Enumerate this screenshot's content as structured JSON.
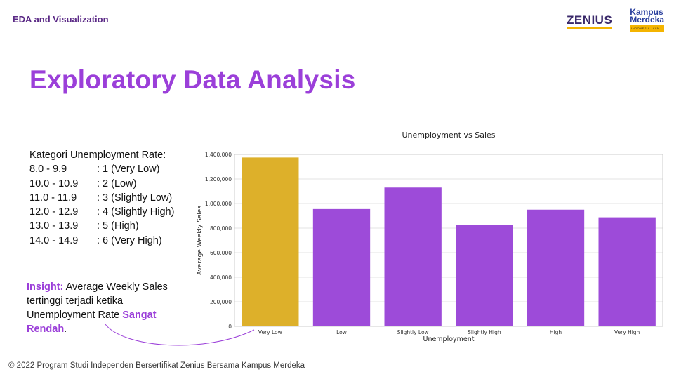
{
  "header": {
    "section_title": "EDA and Visualization",
    "logo_zenius": "ZENIUS",
    "logo_km_line1": "Kampus",
    "logo_km_line2": "Merdeka",
    "logo_km_tagline": "INDONESIA JAYA"
  },
  "page_title": "Exploratory Data Analysis",
  "kategori": {
    "heading": "Kategori Unemployment Rate:",
    "rows": [
      {
        "range": "8.0 - 9.9",
        "category": ": 1 (Very Low)"
      },
      {
        "range": "10.0 - 10.9",
        "category": ": 2 (Low)"
      },
      {
        "range": "11.0 - 11.9",
        "category": ": 3 (Slightly Low)"
      },
      {
        "range": "12.0 - 12.9",
        "category": ": 4 (Slightly High)"
      },
      {
        "range": "13.0 - 13.9",
        "category": ": 5 (High)"
      },
      {
        "range": "14.0 - 14.9",
        "category": ": 6 (Very High)"
      }
    ]
  },
  "insight": {
    "label": "Insight:",
    "text_part1": " Average Weekly Sales tertinggi terjadi ketika Unemployment Rate ",
    "emphasis": "Sangat Rendah",
    "text_end": "."
  },
  "chart_data": {
    "type": "bar",
    "title": "Unemployment vs Sales",
    "xlabel": "Unemployment",
    "ylabel": "Average Weekly Sales",
    "categories": [
      "Very Low",
      "Low",
      "Slightly Low",
      "Slightly High",
      "High",
      "Very High"
    ],
    "values": [
      1375000,
      955000,
      1130000,
      825000,
      950000,
      888000
    ],
    "ylim": [
      0,
      1400000
    ],
    "yticks": [
      "0",
      "200,000",
      "400,000",
      "600,000",
      "800,000",
      "1,000,000",
      "1,200,000",
      "1,400,000"
    ],
    "grid": true,
    "colors": {
      "highlight": "#ddb02a",
      "default": "#9d4bd9",
      "grid": "#e3e3e3",
      "frame": "#cccccc"
    },
    "highlight_index": 0
  },
  "footer": "© 2022 Program Studi Independen Bersertifikat Zenius Bersama Kampus Merdeka"
}
